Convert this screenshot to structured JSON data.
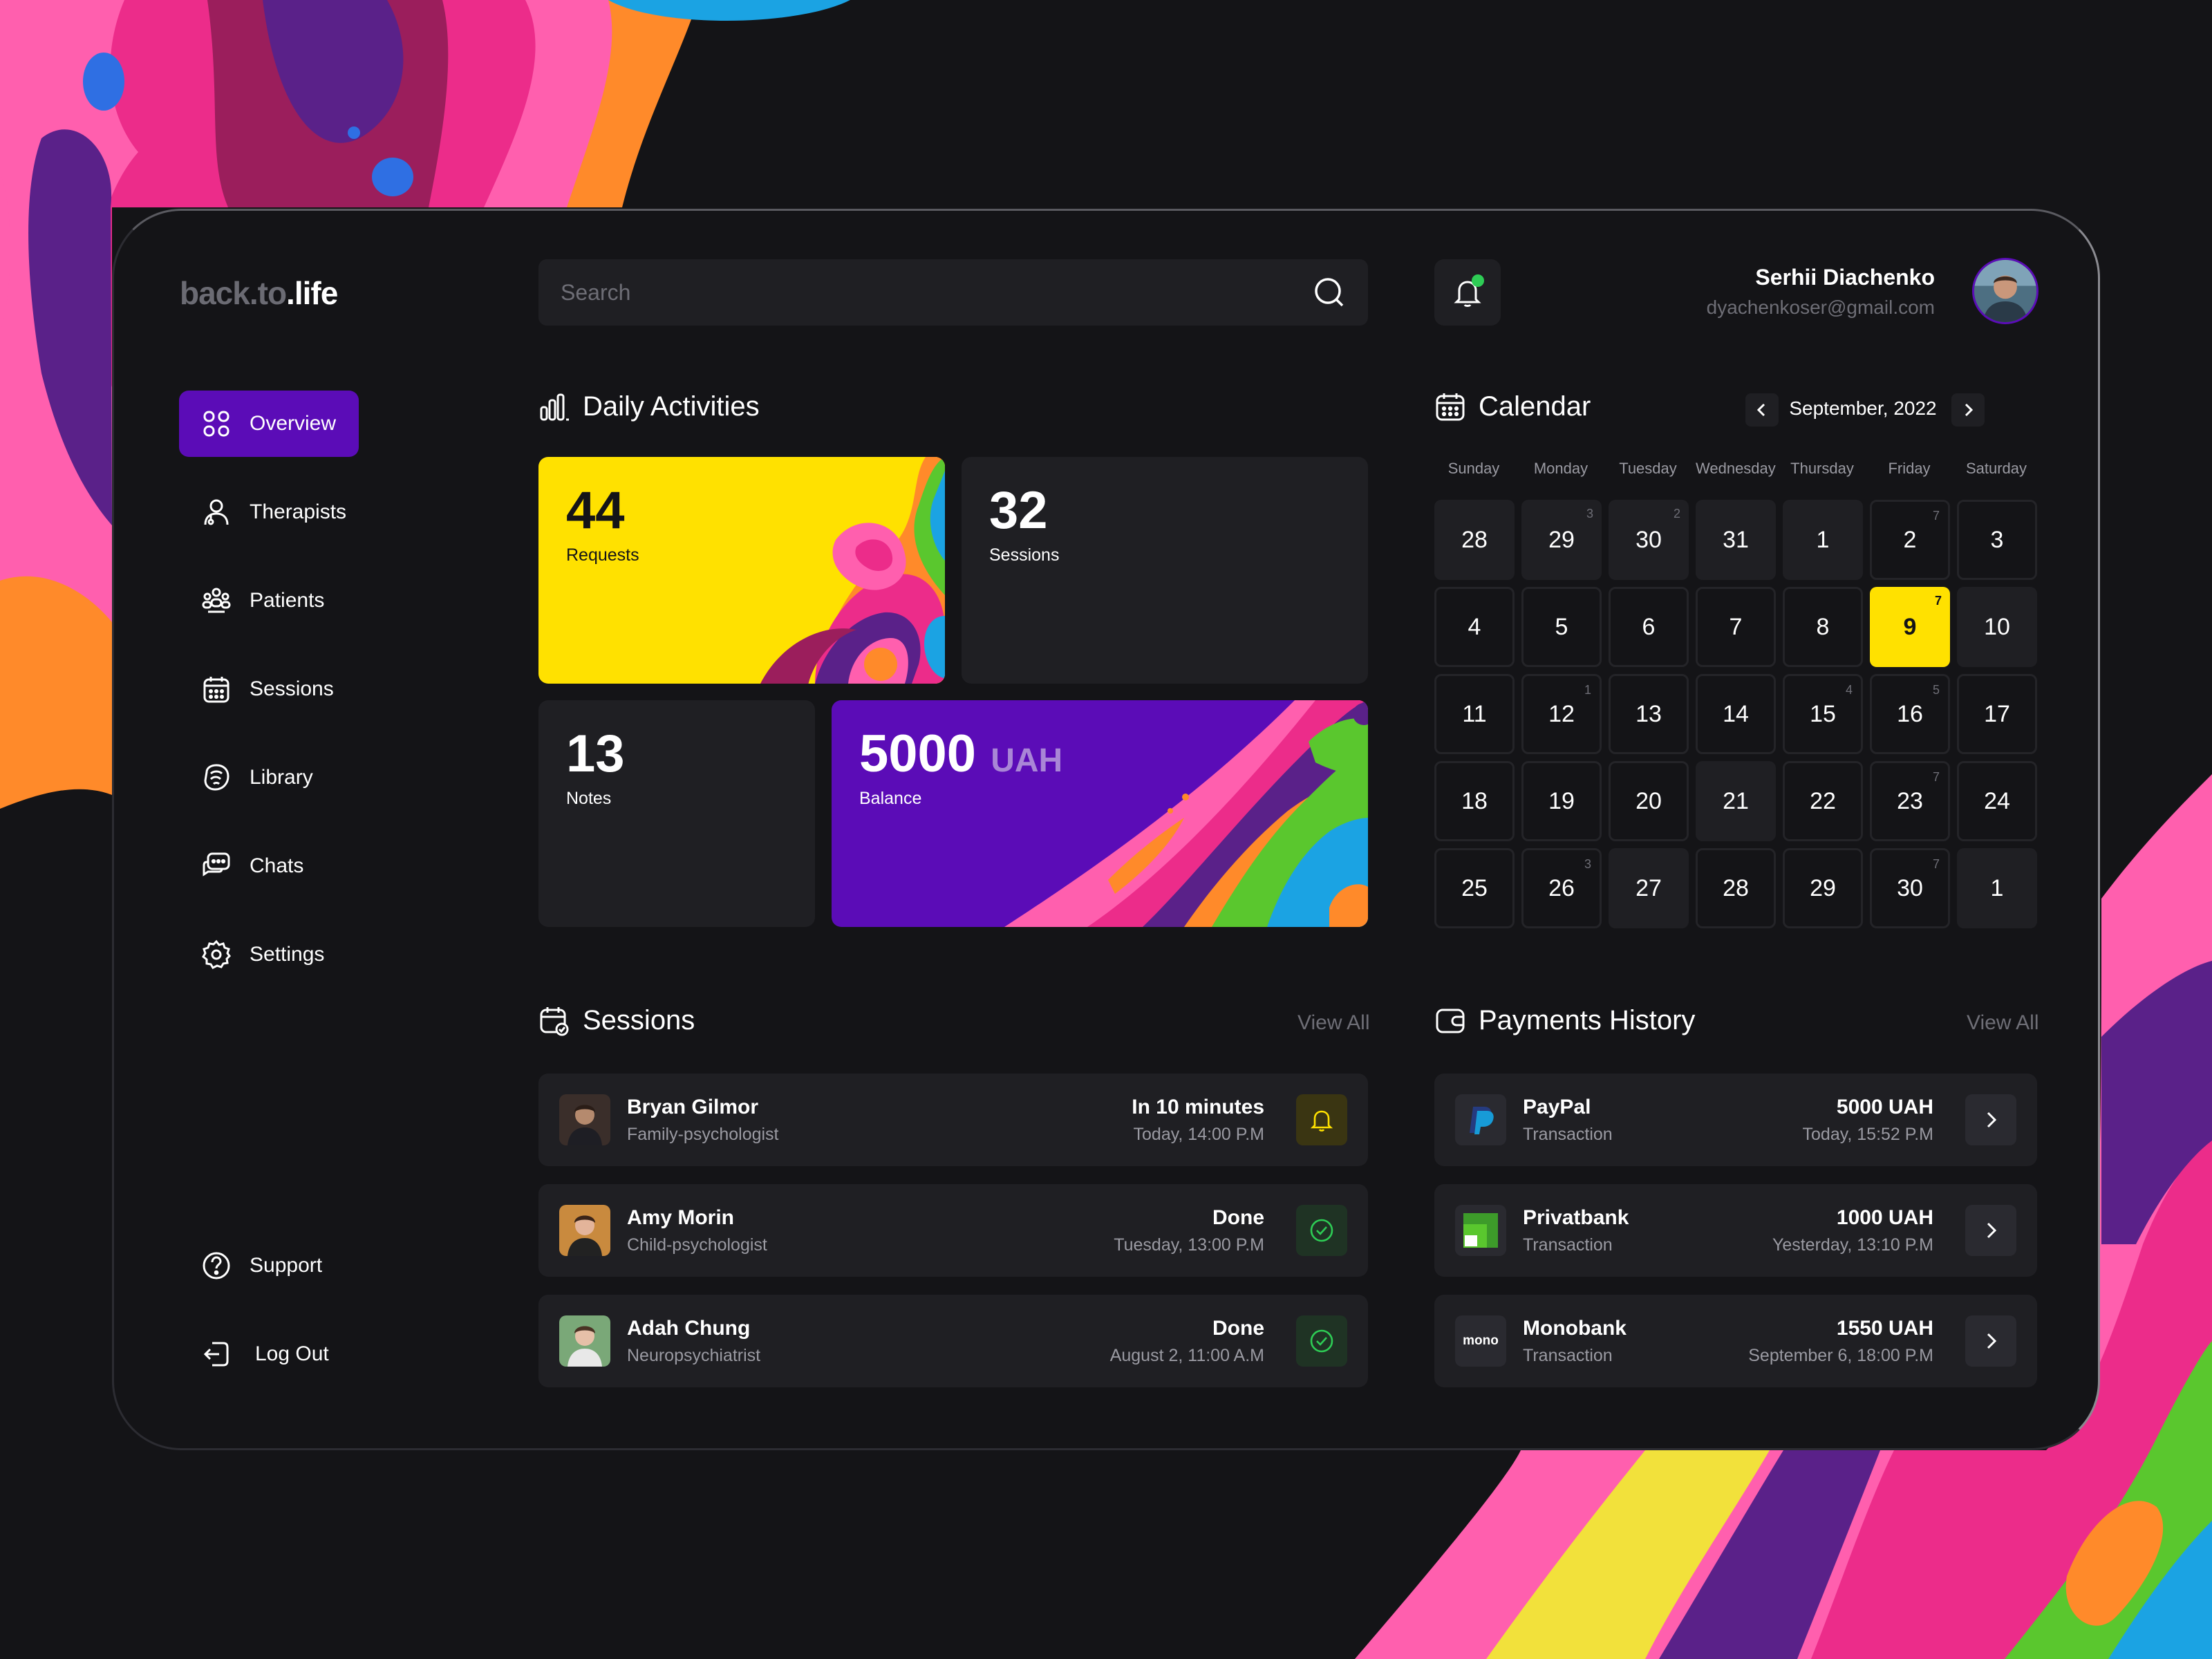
{
  "brand": {
    "part1": "back.to",
    "part2": ".life"
  },
  "search": {
    "placeholder": "Search"
  },
  "user": {
    "name": "Serhii Diachenko",
    "email": "dyachenkoser@gmail.com"
  },
  "nav": {
    "items": [
      {
        "label": "Overview",
        "icon": "grid-icon",
        "active": true
      },
      {
        "label": "Therapists",
        "icon": "therapist-icon"
      },
      {
        "label": "Patients",
        "icon": "patients-icon"
      },
      {
        "label": "Sessions",
        "icon": "calendar-icon"
      },
      {
        "label": "Library",
        "icon": "library-icon"
      },
      {
        "label": "Chats",
        "icon": "chat-icon"
      },
      {
        "label": "Settings",
        "icon": "gear-icon"
      }
    ],
    "bottom": [
      {
        "label": "Support",
        "icon": "help-icon"
      },
      {
        "label": "Log Out",
        "icon": "logout-icon"
      }
    ]
  },
  "activities": {
    "title": "Daily Activities",
    "requests": {
      "value": "44",
      "label": "Requests"
    },
    "sessions": {
      "value": "32",
      "label": "Sessions"
    },
    "notes": {
      "value": "13",
      "label": "Notes"
    },
    "balance": {
      "value": "5000",
      "unit": "UAH",
      "label": "Balance"
    }
  },
  "calendar": {
    "title": "Calendar",
    "month": "September, 2022",
    "weekdays": [
      "Sunday",
      "Monday",
      "Tuesday",
      "Wednesday",
      "Thursday",
      "Friday",
      "Saturday"
    ],
    "weeks": [
      [
        {
          "d": "28",
          "s": "",
          "st": "filled"
        },
        {
          "d": "29",
          "s": "3",
          "st": "filled"
        },
        {
          "d": "30",
          "s": "2",
          "st": "filled"
        },
        {
          "d": "31",
          "s": "",
          "st": "filled"
        },
        {
          "d": "1",
          "s": "",
          "st": "filled"
        },
        {
          "d": "2",
          "s": "7",
          "st": "outline"
        },
        {
          "d": "3",
          "s": "",
          "st": "outline"
        }
      ],
      [
        {
          "d": "4",
          "s": "",
          "st": "outline"
        },
        {
          "d": "5",
          "s": "",
          "st": "outline"
        },
        {
          "d": "6",
          "s": "",
          "st": "outline"
        },
        {
          "d": "7",
          "s": "",
          "st": "outline"
        },
        {
          "d": "8",
          "s": "",
          "st": "outline"
        },
        {
          "d": "9",
          "s": "7",
          "st": "today"
        },
        {
          "d": "10",
          "s": "",
          "st": "filled"
        }
      ],
      [
        {
          "d": "11",
          "s": "",
          "st": "outline"
        },
        {
          "d": "12",
          "s": "1",
          "st": "outline"
        },
        {
          "d": "13",
          "s": "",
          "st": "outline"
        },
        {
          "d": "14",
          "s": "",
          "st": "outline"
        },
        {
          "d": "15",
          "s": "4",
          "st": "outline"
        },
        {
          "d": "16",
          "s": "5",
          "st": "outline"
        },
        {
          "d": "17",
          "s": "",
          "st": "outline"
        }
      ],
      [
        {
          "d": "18",
          "s": "",
          "st": "outline"
        },
        {
          "d": "19",
          "s": "",
          "st": "outline"
        },
        {
          "d": "20",
          "s": "",
          "st": "outline"
        },
        {
          "d": "21",
          "s": "",
          "st": "filled"
        },
        {
          "d": "22",
          "s": "",
          "st": "outline"
        },
        {
          "d": "23",
          "s": "7",
          "st": "outline"
        },
        {
          "d": "24",
          "s": "",
          "st": "outline"
        }
      ],
      [
        {
          "d": "25",
          "s": "",
          "st": "outline"
        },
        {
          "d": "26",
          "s": "3",
          "st": "outline"
        },
        {
          "d": "27",
          "s": "",
          "st": "filled"
        },
        {
          "d": "28",
          "s": "",
          "st": "outline"
        },
        {
          "d": "29",
          "s": "",
          "st": "outline"
        },
        {
          "d": "30",
          "s": "7",
          "st": "outline"
        },
        {
          "d": "1",
          "s": "",
          "st": "filled"
        }
      ]
    ]
  },
  "sessions": {
    "title": "Sessions",
    "view_all": "View All",
    "rows": [
      {
        "name": "Bryan Gilmor",
        "role": "Family-psychologist",
        "status": "In 10 minutes",
        "time": "Today, 14:00 P.M",
        "action": "bell-icon"
      },
      {
        "name": "Amy Morin",
        "role": "Child-psychologist",
        "status": "Done",
        "time": "Tuesday, 13:00 P.M",
        "action": "check-circle-icon"
      },
      {
        "name": "Adah Chung",
        "role": "Neuropsychiatrist",
        "status": "Done",
        "time": "August 2, 11:00 A.M",
        "action": "check-circle-icon"
      }
    ]
  },
  "payments": {
    "title": "Payments History",
    "view_all": "View All",
    "rows": [
      {
        "name": "PayPal",
        "type": "Transaction",
        "amount": "5000 UAH",
        "time": "Today, 15:52 P.M",
        "logo": "paypal-logo"
      },
      {
        "name": "Privatbank",
        "type": "Transaction",
        "amount": "1000 UAH",
        "time": "Yesterday, 13:10 P.M",
        "logo": "privatbank-logo"
      },
      {
        "name": "Monobank",
        "type": "Transaction",
        "amount": "1550 UAH",
        "time": "September 6, 18:00 P.M",
        "logo": "monobank-logo",
        "logo_text": "mono"
      }
    ]
  },
  "colors": {
    "accent": "#5b0cb7",
    "highlight": "#ffe100",
    "surface": "#1f1f23",
    "bg": "#141417",
    "success": "#2ecc55"
  }
}
